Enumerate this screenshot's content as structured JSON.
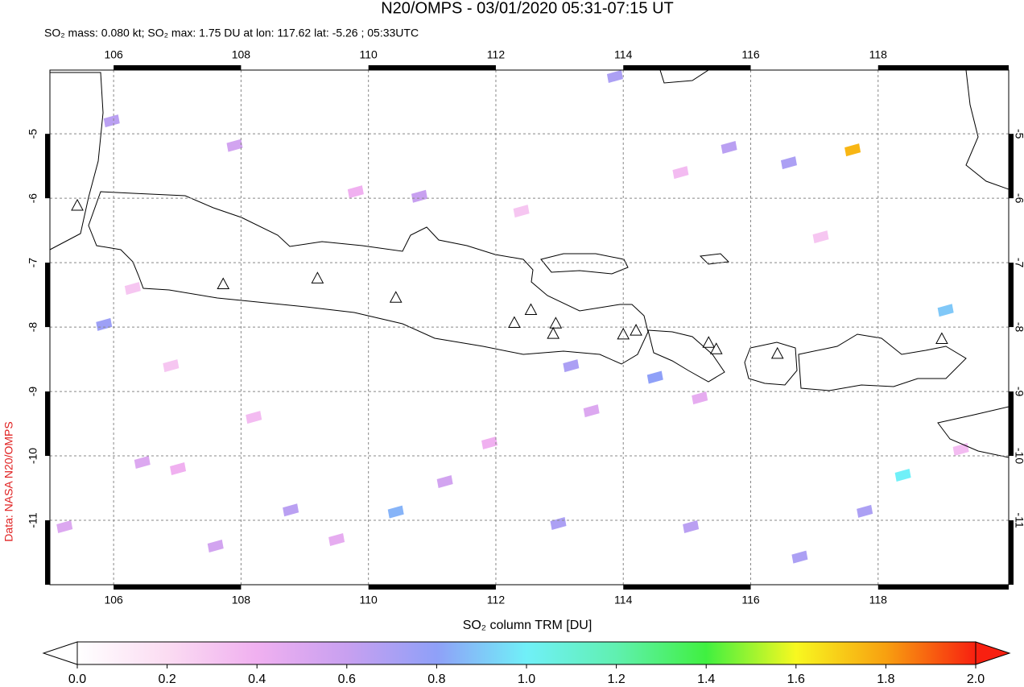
{
  "chart_data": {
    "type": "map",
    "title": "N20/OMPS - 03/01/2020 05:31-07:15 UT",
    "subtitle": "SO₂ mass: 0.080 kt; SO₂ max: 1.75 DU at lon: 117.62 lat: -5.26 ; 05:33UTC",
    "credit": "Data: NASA N20/OMPS",
    "xlim": [
      105.0,
      120.05
    ],
    "ylim": [
      -12.0,
      -4.01
    ],
    "xticks": [
      106,
      108,
      110,
      112,
      114,
      116,
      118
    ],
    "yticks": [
      -5,
      -6,
      -7,
      -8,
      -9,
      -10,
      -11
    ],
    "grid": true,
    "pixels": {
      "lon": [
        117.6,
        118.39,
        119.06,
        105.85,
        110.43,
        114.5,
        112.98,
        108.78,
        105.97,
        113.87,
        107.9,
        110.8,
        116.6,
        117.79,
        116.77,
        115.66,
        113.18,
        115.06,
        111.2,
        107.01,
        106.45,
        105.23,
        107.6,
        109.8,
        106.9,
        108.2,
        111.9,
        113.5,
        115.2,
        117.1,
        119.3,
        106.3,
        109.5,
        112.4,
        114.9
      ],
      "lat": [
        -5.25,
        -10.3,
        -7.74,
        -7.96,
        -10.87,
        -8.78,
        -11.05,
        -10.84,
        -4.8,
        -4.11,
        -5.18,
        -5.97,
        -5.45,
        -10.86,
        -11.57,
        -5.21,
        -8.6,
        -11.1,
        -10.4,
        -10.2,
        -10.1,
        -11.1,
        -11.4,
        -5.9,
        -8.6,
        -9.4,
        -9.8,
        -9.3,
        -9.1,
        -6.6,
        -9.9,
        -7.4,
        -11.3,
        -6.2,
        -5.6
      ],
      "values": [
        1.75,
        1.0,
        0.9,
        0.75,
        0.85,
        0.8,
        0.7,
        0.65,
        0.65,
        0.7,
        0.55,
        0.6,
        0.7,
        0.7,
        0.7,
        0.65,
        0.7,
        0.65,
        0.55,
        0.4,
        0.5,
        0.5,
        0.55,
        0.4,
        0.3,
        0.35,
        0.4,
        0.5,
        0.45,
        0.3,
        0.35,
        0.3,
        0.45,
        0.3,
        0.35
      ]
    },
    "volcanoes": {
      "lon": [
        105.43,
        107.72,
        109.2,
        110.43,
        112.29,
        112.55,
        112.94,
        112.9,
        114.0,
        114.2,
        115.34,
        115.46,
        116.42,
        119.0
      ],
      "lat": [
        -6.11,
        -7.33,
        -7.24,
        -7.54,
        -7.93,
        -7.73,
        -7.94,
        -8.1,
        -8.11,
        -8.05,
        -8.24,
        -8.34,
        -8.41,
        -8.18
      ]
    },
    "colorbar": {
      "label": "SO₂ column TRM [DU]",
      "lim": [
        0,
        2
      ],
      "ticks": [
        {
          "value": 0,
          "label": "0.0"
        },
        {
          "value": 0.2,
          "label": "0.2"
        },
        {
          "value": 0.4,
          "label": "0.4"
        },
        {
          "value": 0.6,
          "label": "0.6"
        },
        {
          "value": 0.8,
          "label": "0.8"
        },
        {
          "value": 1,
          "label": "1.0"
        },
        {
          "value": 1.2,
          "label": "1.2"
        },
        {
          "value": 1.4,
          "label": "1.4"
        },
        {
          "value": 1.6,
          "label": "1.6"
        },
        {
          "value": 1.8,
          "label": "1.8"
        },
        {
          "value": 2,
          "label": "2.0"
        }
      ]
    }
  }
}
